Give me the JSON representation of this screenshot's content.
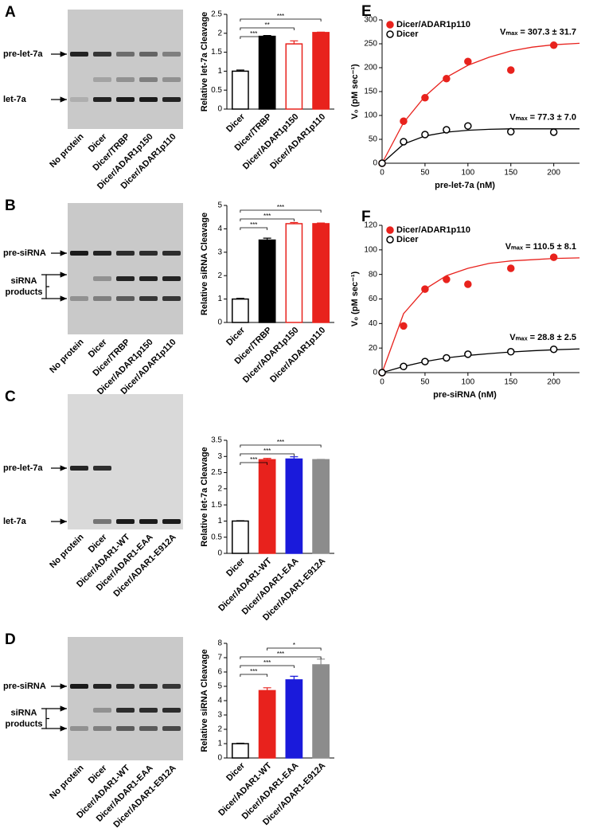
{
  "chart_data": [
    {
      "type": "bar",
      "ylabel": "Relative let-7a Cleavage",
      "categories": [
        "Dicer",
        "Dicer/TRBP",
        "Dicer/ADAR1p150",
        "Dicer/ADAR1p110"
      ],
      "values": [
        1.0,
        1.92,
        1.72,
        2.02
      ],
      "errors": [
        0.03,
        0.02,
        0.08,
        0.01
      ],
      "colors": [
        "#000000",
        "#000000",
        "#e8221d",
        "#e8221d"
      ],
      "filled": [
        false,
        true,
        false,
        true
      ],
      "category_colors": [
        "#000000",
        "#000000",
        "#e8221d",
        "#e8221d"
      ],
      "ylim": [
        0,
        2.5
      ],
      "yticks": [
        0,
        0.5,
        1,
        1.5,
        2,
        2.5
      ],
      "significance": [
        {
          "pair": [
            "Dicer",
            "Dicer/ADAR1p110"
          ],
          "label": "***"
        },
        {
          "pair": [
            "Dicer",
            "Dicer/ADAR1p150"
          ],
          "label": "**"
        },
        {
          "pair": [
            "Dicer",
            "Dicer/TRBP"
          ],
          "label": "***"
        }
      ]
    },
    {
      "type": "bar",
      "ylabel": "Relative siRNA Cleavage",
      "categories": [
        "Dicer",
        "Dicer/TRBP",
        "Dicer/ADAR1p150",
        "Dicer/ADAR1p110"
      ],
      "values": [
        1.0,
        3.52,
        4.22,
        4.22
      ],
      "errors": [
        0.03,
        0.08,
        0.05,
        0.03
      ],
      "colors": [
        "#000000",
        "#000000",
        "#e8221d",
        "#e8221d"
      ],
      "filled": [
        false,
        true,
        false,
        true
      ],
      "category_colors": [
        "#000000",
        "#000000",
        "#e8221d",
        "#e8221d"
      ],
      "ylim": [
        0,
        5
      ],
      "yticks": [
        0,
        1,
        2,
        3,
        4,
        5
      ],
      "significance": [
        {
          "pair": [
            "Dicer",
            "Dicer/ADAR1p110"
          ],
          "label": "***"
        },
        {
          "pair": [
            "Dicer",
            "Dicer/ADAR1p150"
          ],
          "label": "***"
        },
        {
          "pair": [
            "Dicer",
            "Dicer/TRBP"
          ],
          "label": "***"
        }
      ]
    },
    {
      "type": "bar",
      "ylabel": "Relative let-7a Cleavage",
      "categories": [
        "Dicer",
        "Dicer/ADAR1-WT",
        "Dicer/ADAR1-EAA",
        "Dicer/ADAR1-E912A"
      ],
      "values": [
        1.0,
        2.9,
        2.92,
        2.9
      ],
      "errors": [
        0.01,
        0.04,
        0.07,
        0.01
      ],
      "colors": [
        "#000000",
        "#e8221d",
        "#1a1adb",
        "#8c8c8c"
      ],
      "filled": [
        false,
        true,
        true,
        true
      ],
      "category_colors": [
        "#000000",
        "#e8221d",
        "#1a1adb",
        "#8c8c8c"
      ],
      "ylim": [
        0,
        3.5
      ],
      "yticks": [
        0,
        0.5,
        1,
        1.5,
        2,
        2.5,
        3,
        3.5
      ],
      "significance": [
        {
          "pair": [
            "Dicer",
            "Dicer/ADAR1-E912A"
          ],
          "label": "***"
        },
        {
          "pair": [
            "Dicer",
            "Dicer/ADAR1-EAA"
          ],
          "label": "***"
        },
        {
          "pair": [
            "Dicer",
            "Dicer/ADAR1-WT"
          ],
          "label": "***"
        }
      ]
    },
    {
      "type": "bar",
      "ylabel": "Relative siRNA Cleavage",
      "categories": [
        "Dicer",
        "Dicer/ADAR1-WT",
        "Dicer/ADAR1-EAA",
        "Dicer/ADAR1-E912A"
      ],
      "values": [
        1.0,
        4.7,
        5.45,
        6.5
      ],
      "errors": [
        0.03,
        0.2,
        0.25,
        0.4
      ],
      "colors": [
        "#000000",
        "#e8221d",
        "#1a1adb",
        "#8c8c8c"
      ],
      "filled": [
        false,
        true,
        true,
        true
      ],
      "category_colors": [
        "#000000",
        "#e8221d",
        "#1a1adb",
        "#8c8c8c"
      ],
      "ylim": [
        0,
        8
      ],
      "yticks": [
        0,
        1,
        2,
        3,
        4,
        5,
        6,
        7,
        8
      ],
      "significance": [
        {
          "pair": [
            "Dicer/ADAR1-WT",
            "Dicer/ADAR1-E912A"
          ],
          "label": "*"
        },
        {
          "pair": [
            "Dicer",
            "Dicer/ADAR1-E912A"
          ],
          "label": "***"
        },
        {
          "pair": [
            "Dicer",
            "Dicer/ADAR1-EAA"
          ],
          "label": "***"
        },
        {
          "pair": [
            "Dicer",
            "Dicer/ADAR1-WT"
          ],
          "label": "***"
        }
      ]
    },
    {
      "type": "scatter",
      "panel": "E",
      "xlabel": "pre-let-7a (nM)",
      "ylabel": "V₀ (pM sec⁻¹)",
      "xlim": [
        0,
        230
      ],
      "xticks": [
        0,
        50,
        100,
        150,
        200
      ],
      "ylim": [
        0,
        300
      ],
      "yticks": [
        0,
        50,
        100,
        150,
        200,
        250,
        300
      ],
      "legend": "upper-left",
      "fit_x": [
        0,
        25,
        50,
        75,
        100,
        125,
        150,
        175,
        200,
        230
      ],
      "series": [
        {
          "name": "Dicer/ADAR1p110",
          "color": "#e8221d",
          "filled": true,
          "x": [
            0,
            25,
            50,
            75,
            100,
            150,
            200
          ],
          "values": [
            0,
            88,
            137,
            177,
            213,
            195,
            247
          ],
          "fit": [
            0,
            85,
            140,
            180,
            205,
            222,
            235,
            243,
            248,
            251
          ],
          "annotation": "Vₘₐₓ = 307.3 ± 31.7"
        },
        {
          "name": "Dicer",
          "color": "#000000",
          "filled": false,
          "x": [
            0,
            25,
            50,
            75,
            100,
            150,
            200
          ],
          "values": [
            0,
            45,
            60,
            70,
            78,
            66,
            65
          ],
          "fit": [
            0,
            40,
            57,
            65,
            69,
            71,
            72,
            72,
            72,
            72
          ],
          "annotation": "Vₘₐₓ = 77.3 ± 7.0"
        }
      ]
    },
    {
      "type": "scatter",
      "panel": "F",
      "xlabel": "pre-siRNA (nM)",
      "ylabel": "V₀ (pM sec⁻¹)",
      "xlim": [
        0,
        230
      ],
      "xticks": [
        0,
        50,
        100,
        150,
        200
      ],
      "ylim": [
        0,
        120
      ],
      "yticks": [
        0,
        20,
        40,
        60,
        80,
        100,
        120
      ],
      "legend": "upper-left",
      "fit_x": [
        0,
        25,
        50,
        75,
        100,
        125,
        150,
        175,
        200,
        230
      ],
      "series": [
        {
          "name": "Dicer/ADAR1p110",
          "color": "#e8221d",
          "filled": true,
          "x": [
            0,
            25,
            50,
            75,
            100,
            150,
            200
          ],
          "values": [
            0,
            38,
            68,
            76,
            72,
            85,
            94
          ],
          "fit": [
            0,
            48,
            68,
            79,
            85,
            89,
            91,
            92,
            93,
            93.5
          ],
          "annotation": "Vₘₐₓ = 110.5 ± 8.1"
        },
        {
          "name": "Dicer",
          "color": "#000000",
          "filled": false,
          "x": [
            0,
            25,
            50,
            75,
            100,
            150,
            200
          ],
          "values": [
            0,
            5,
            9,
            12,
            15,
            17,
            19
          ],
          "fit": [
            0,
            5,
            9,
            12,
            14,
            15.5,
            16.8,
            17.8,
            18.6,
            19.3
          ],
          "annotation": "Vₘₐₓ = 28.8 ± 2.5"
        }
      ]
    }
  ],
  "gels": [
    {
      "panel": "A",
      "bands": [
        "pre-let-7a",
        "let-7a"
      ],
      "lanes": [
        "No protein",
        "Dicer",
        "Dicer/TRBP",
        "Dicer/ADAR1p150",
        "Dicer/ADAR1p110"
      ],
      "lane_colors": [
        "#000000",
        "#000000",
        "#000000",
        "#e8221d",
        "#e8221d"
      ]
    },
    {
      "panel": "B",
      "bands": [
        "pre-siRNA"
      ],
      "bracket": [
        "siRNA",
        "products"
      ],
      "lanes": [
        "No protein",
        "Dicer",
        "Dicer/TRBP",
        "Dicer/ADAR1p150",
        "Dicer/ADAR1p110"
      ],
      "lane_colors": [
        "#000000",
        "#000000",
        "#000000",
        "#e8221d",
        "#e8221d"
      ]
    },
    {
      "panel": "C",
      "bands": [
        "pre-let-7a",
        "let-7a"
      ],
      "lanes": [
        "No protein",
        "Dicer",
        "Dicer/ADAR1-WT",
        "Dicer/ADAR1-EAA",
        "Dicer/ADAR1-E912A"
      ],
      "lane_colors": [
        "#000000",
        "#000000",
        "#e8221d",
        "#1a1adb",
        "#8c8c8c"
      ]
    },
    {
      "panel": "D",
      "bands": [
        "pre-siRNA"
      ],
      "bracket": [
        "siRNA",
        "products"
      ],
      "lanes": [
        "No protein",
        "Dicer",
        "Dicer/ADAR1-WT",
        "Dicer/ADAR1-EAA",
        "Dicer/ADAR1-E912A"
      ],
      "lane_colors": [
        "#000000",
        "#000000",
        "#e8221d",
        "#1a1adb",
        "#8c8c8c"
      ]
    }
  ]
}
